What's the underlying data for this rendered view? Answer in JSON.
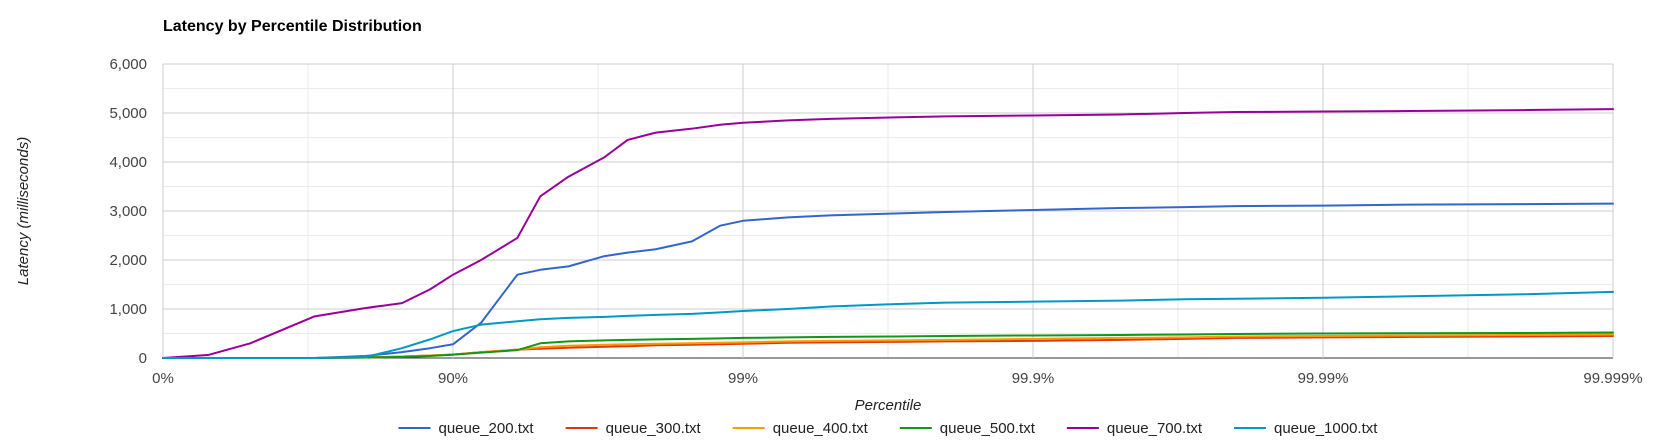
{
  "chart_data": {
    "type": "line",
    "title": "Latency by Percentile Distribution",
    "xlabel": "Percentile",
    "ylabel": "Latency (milliseconds)",
    "x_scale": "log-reciprocal of (100 - percentile)",
    "x_ticks": [
      {
        "value": 0,
        "label": "0%"
      },
      {
        "value": 90,
        "label": "90%"
      },
      {
        "value": 99,
        "label": "99%"
      },
      {
        "value": 99.9,
        "label": "99.9%"
      },
      {
        "value": 99.99,
        "label": "99.99%"
      },
      {
        "value": 99.999,
        "label": "99.999%"
      }
    ],
    "xlim": [
      0,
      99.999
    ],
    "ylim": [
      0,
      6000
    ],
    "y_ticks": [
      {
        "value": 0,
        "label": "0"
      },
      {
        "value": 1000,
        "label": "1,000"
      },
      {
        "value": 2000,
        "label": "2,000"
      },
      {
        "value": 3000,
        "label": "3,000"
      },
      {
        "value": 4000,
        "label": "4,000"
      },
      {
        "value": 5000,
        "label": "5,000"
      },
      {
        "value": 6000,
        "label": "6,000"
      }
    ],
    "y_minor_step": 500,
    "grid": true,
    "legend_position": "bottom",
    "x": [
      0,
      30,
      50,
      70,
      80,
      85,
      88,
      90,
      92,
      94,
      95,
      96,
      97,
      97.5,
      98,
      98.5,
      98.8,
      99,
      99.3,
      99.5,
      99.7,
      99.8,
      99.9,
      99.95,
      99.97,
      99.98,
      99.99,
      99.995,
      99.998,
      99.999
    ],
    "series": [
      {
        "name": "queue_200.txt",
        "color": "#3366cc",
        "values": [
          0,
          0,
          0,
          0,
          40,
          120,
          200,
          280,
          720,
          1700,
          1800,
          1870,
          2080,
          2150,
          2220,
          2380,
          2700,
          2800,
          2870,
          2910,
          2950,
          2980,
          3020,
          3060,
          3080,
          3100,
          3110,
          3130,
          3140,
          3150
        ]
      },
      {
        "name": "queue_300.txt",
        "color": "#dc3912",
        "values": [
          0,
          0,
          0,
          0,
          10,
          30,
          50,
          70,
          120,
          170,
          190,
          210,
          230,
          240,
          260,
          270,
          280,
          290,
          310,
          320,
          330,
          340,
          350,
          370,
          390,
          410,
          420,
          430,
          440,
          450
        ]
      },
      {
        "name": "queue_400.txt",
        "color": "#ff9900",
        "values": [
          0,
          0,
          0,
          0,
          10,
          30,
          50,
          70,
          120,
          170,
          220,
          250,
          270,
          280,
          290,
          300,
          310,
          320,
          340,
          350,
          360,
          370,
          390,
          410,
          420,
          440,
          450,
          460,
          470,
          480
        ]
      },
      {
        "name": "queue_500.txt",
        "color": "#109618",
        "values": [
          0,
          0,
          0,
          0,
          10,
          20,
          40,
          70,
          110,
          160,
          300,
          340,
          360,
          370,
          380,
          390,
          400,
          410,
          420,
          430,
          440,
          450,
          460,
          470,
          480,
          490,
          500,
          505,
          510,
          520
        ]
      },
      {
        "name": "queue_700.txt",
        "color": "#990099",
        "values": [
          0,
          60,
          300,
          850,
          1020,
          1120,
          1400,
          1700,
          2000,
          2450,
          3300,
          3700,
          4100,
          4450,
          4600,
          4680,
          4760,
          4800,
          4850,
          4880,
          4910,
          4930,
          4950,
          4970,
          5000,
          5020,
          5030,
          5040,
          5060,
          5080
        ]
      },
      {
        "name": "queue_1000.txt",
        "color": "#0099c6",
        "values": [
          0,
          0,
          0,
          0,
          20,
          200,
          380,
          550,
          680,
          750,
          790,
          820,
          840,
          860,
          880,
          900,
          930,
          960,
          1000,
          1050,
          1100,
          1130,
          1150,
          1170,
          1200,
          1210,
          1230,
          1260,
          1300,
          1350
        ]
      }
    ]
  }
}
